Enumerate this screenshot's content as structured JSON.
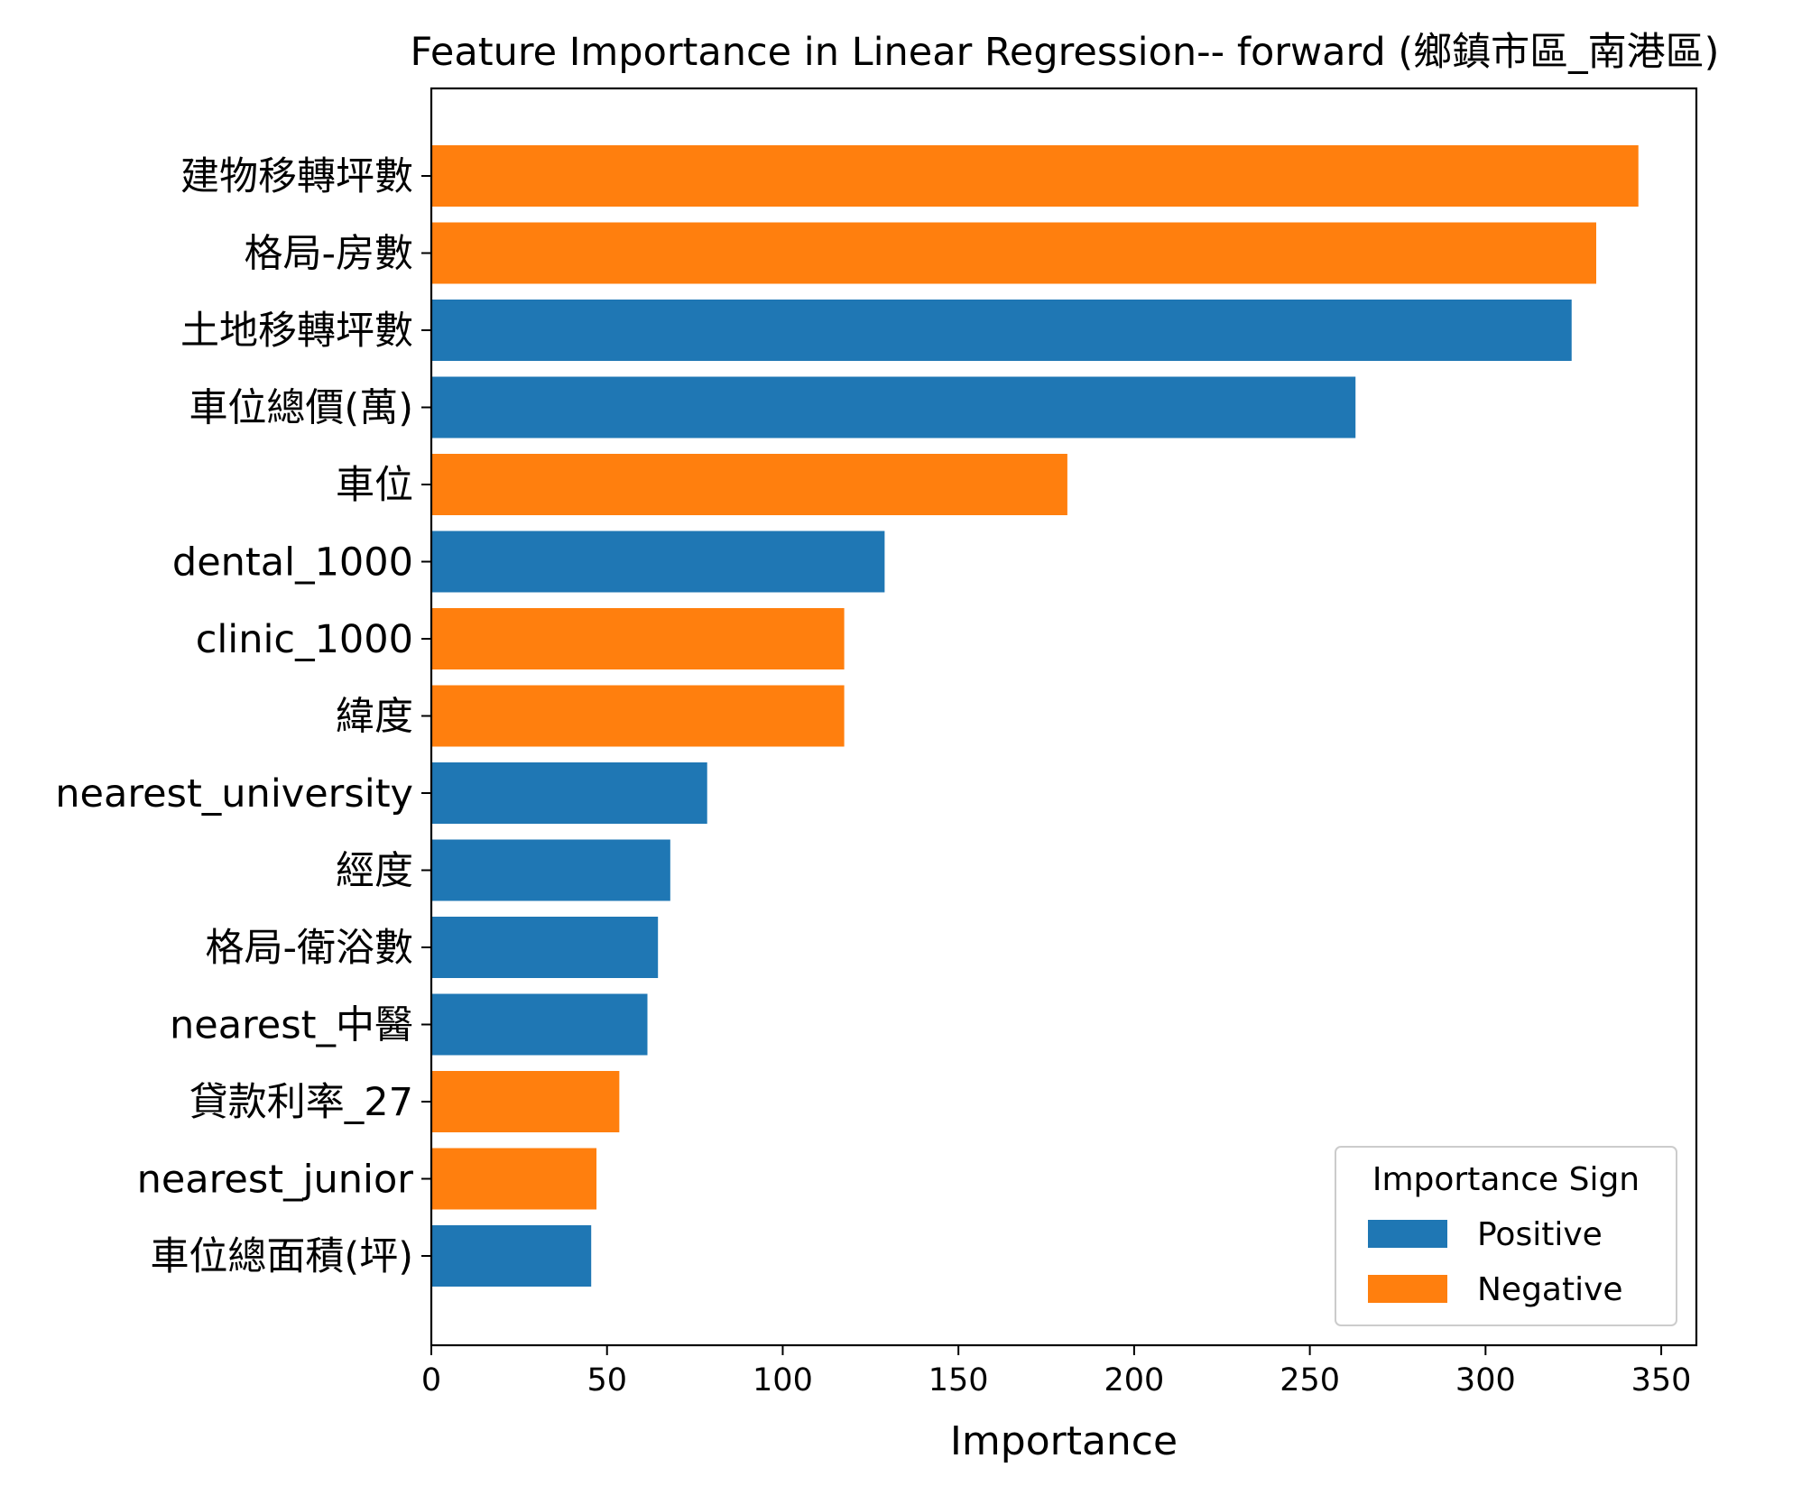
{
  "chart_data": {
    "type": "bar",
    "orientation": "horizontal",
    "title": "Feature Importance in Linear Regression-- forward (鄉鎮市區_南港區)",
    "xlabel": "Importance",
    "ylabel": "",
    "xlim": [
      0,
      360
    ],
    "x_ticks": [
      0,
      50,
      100,
      150,
      200,
      250,
      300,
      350
    ],
    "grid": false,
    "categories": [
      "建物移轉坪數",
      "格局-房數",
      "土地移轉坪數",
      "車位總價(萬)",
      "車位",
      "dental_1000",
      "clinic_1000",
      "緯度",
      "nearest_university",
      "經度",
      "格局-衛浴數",
      "nearest_中醫",
      "貸款利率_27",
      "nearest_junior",
      "車位總面積(坪)"
    ],
    "values": [
      343.5,
      331.5,
      324.5,
      263,
      181,
      129,
      117.5,
      117.5,
      78.5,
      68,
      64.5,
      61.5,
      53.5,
      47,
      45.5
    ],
    "signs": [
      "Negative",
      "Negative",
      "Positive",
      "Positive",
      "Negative",
      "Positive",
      "Negative",
      "Negative",
      "Positive",
      "Positive",
      "Positive",
      "Positive",
      "Negative",
      "Negative",
      "Positive"
    ],
    "legend": {
      "title": "Importance Sign",
      "placement": "lower-right",
      "entries": [
        {
          "label": "Positive",
          "color": "#1f77b4"
        },
        {
          "label": "Negative",
          "color": "#ff7f0e"
        }
      ]
    },
    "colors": {
      "Positive": "#1f77b4",
      "Negative": "#ff7f0e"
    }
  }
}
